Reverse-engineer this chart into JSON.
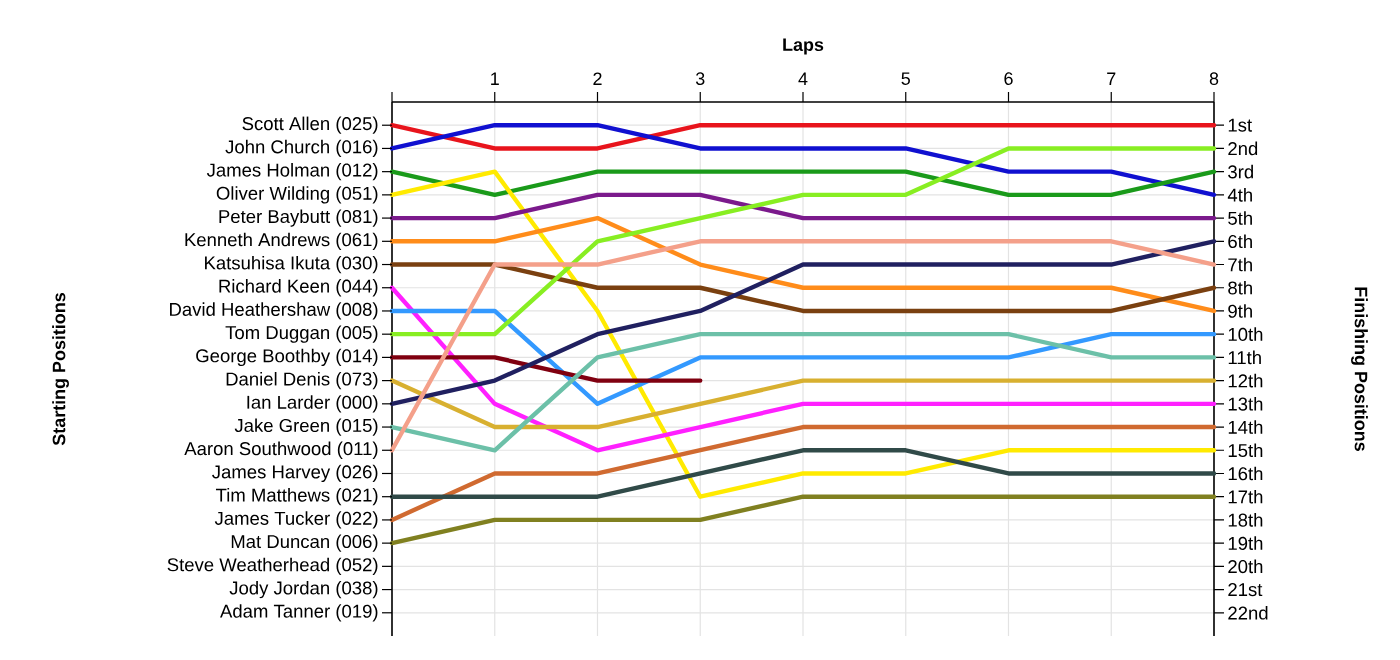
{
  "chart_data": {
    "type": "line",
    "xlabel": "Laps",
    "ylabel": "Finishing Positions",
    "grid": true,
    "x": [
      0,
      1,
      2,
      3,
      4,
      5,
      6,
      7,
      8
    ],
    "xlim": [
      0,
      8
    ],
    "xticks": [
      {
        "value": 0,
        "label": null
      },
      1,
      2,
      3,
      4,
      5,
      6,
      7,
      8
    ],
    "ylim": [
      23,
      0
    ],
    "yticks": [
      {
        "value": 1,
        "label": "1st"
      },
      {
        "value": 2,
        "label": "2nd"
      },
      {
        "value": 3,
        "label": "3rd"
      },
      {
        "value": 4,
        "label": "4th"
      },
      {
        "value": 5,
        "label": "5th"
      },
      {
        "value": 6,
        "label": "6th"
      },
      {
        "value": 7,
        "label": "7th"
      },
      {
        "value": 8,
        "label": "8th"
      },
      {
        "value": 9,
        "label": "9th"
      },
      {
        "value": 10,
        "label": "10th"
      },
      {
        "value": 11,
        "label": "11th"
      },
      {
        "value": 12,
        "label": "12th"
      },
      {
        "value": 13,
        "label": "13th"
      },
      {
        "value": 14,
        "label": "14th"
      },
      {
        "value": 15,
        "label": "15th"
      },
      {
        "value": 16,
        "label": "16th"
      },
      {
        "value": 17,
        "label": "17th"
      },
      {
        "value": 18,
        "label": "18th"
      },
      {
        "value": 19,
        "label": "19th"
      },
      {
        "value": 20,
        "label": "20th"
      },
      {
        "value": 21,
        "label": "21st"
      },
      {
        "value": 22,
        "label": "22nd"
      }
    ],
    "annotations": [
      "Scott Allen (025)",
      "John Church (016)",
      "James Holman (012)",
      "Oliver Wilding (051)",
      "Peter Baybutt (081)",
      "Kenneth Andrews (061)",
      "Katsuhisa Ikuta (030)",
      "Richard Keen (044)",
      "David Heathershaw (008)",
      "Tom Duggan (005)",
      "George Boothby (014)",
      "Daniel Denis (073)",
      "Ian Larder (000)",
      "Jake Green (015)",
      "Aaron Southwood (011)",
      "James Harvey (026)",
      "Tim Matthews (021)",
      "James Tucker (022)",
      "Mat Duncan (006)",
      "Steve Weatherhead (052)",
      "Jody Jordan (038)",
      "Adam Tanner (019)",
      "Starting Positions"
    ],
    "series": [
      {
        "color": "#e8141c",
        "values": [
          1,
          2,
          2,
          1,
          1,
          1,
          1,
          1,
          1
        ]
      },
      {
        "color": "#1010d0",
        "values": [
          2,
          1,
          1,
          2,
          2,
          2,
          3,
          3,
          4
        ]
      },
      {
        "color": "#1a9a1a",
        "values": [
          3,
          4,
          3,
          3,
          3,
          3,
          4,
          4,
          3
        ]
      },
      {
        "color": "#ffea00",
        "values": [
          4,
          3,
          9,
          17,
          16,
          16,
          15,
          15,
          15
        ]
      },
      {
        "color": "#7b1a8c",
        "values": [
          5,
          5,
          4,
          4,
          5,
          5,
          5,
          5,
          5
        ]
      },
      {
        "color": "#ff8c1a",
        "values": [
          6,
          6,
          5,
          7,
          8,
          8,
          8,
          8,
          9
        ]
      },
      {
        "color": "#7a4010",
        "values": [
          7,
          7,
          8,
          8,
          9,
          9,
          9,
          9,
          8
        ]
      },
      {
        "color": "#ff20ff",
        "values": [
          8,
          13,
          15,
          14,
          13,
          13,
          13,
          13,
          13
        ]
      },
      {
        "color": "#3399ff",
        "values": [
          9,
          9,
          13,
          11,
          11,
          11,
          11,
          10,
          10
        ]
      },
      {
        "color": "#88ee22",
        "values": [
          10,
          10,
          6,
          5,
          4,
          4,
          2,
          2,
          2
        ]
      },
      {
        "color": "#800010",
        "values": [
          11,
          11,
          12,
          12,
          null,
          null,
          null,
          null,
          null
        ]
      },
      {
        "color": "#d8b030",
        "values": [
          12,
          14,
          14,
          13,
          12,
          12,
          12,
          12,
          12
        ]
      },
      {
        "color": "#202060",
        "values": [
          13,
          12,
          10,
          9,
          7,
          7,
          7,
          7,
          6
        ]
      },
      {
        "color": "#6cc0a8",
        "values": [
          14,
          15,
          11,
          10,
          10,
          10,
          10,
          11,
          11
        ]
      },
      {
        "color": "#f4a08a",
        "values": [
          15,
          7,
          7,
          6,
          6,
          6,
          6,
          6,
          7
        ]
      },
      {
        "color": "#d06a30",
        "values": [
          18,
          16,
          16,
          15,
          14,
          14,
          14,
          14,
          14
        ]
      },
      {
        "color": "#304a48",
        "values": [
          17,
          17,
          17,
          16,
          15,
          15,
          16,
          16,
          16
        ]
      },
      {
        "color": "#808020",
        "values": [
          19,
          18,
          18,
          18,
          17,
          17,
          17,
          17,
          17
        ]
      }
    ]
  }
}
